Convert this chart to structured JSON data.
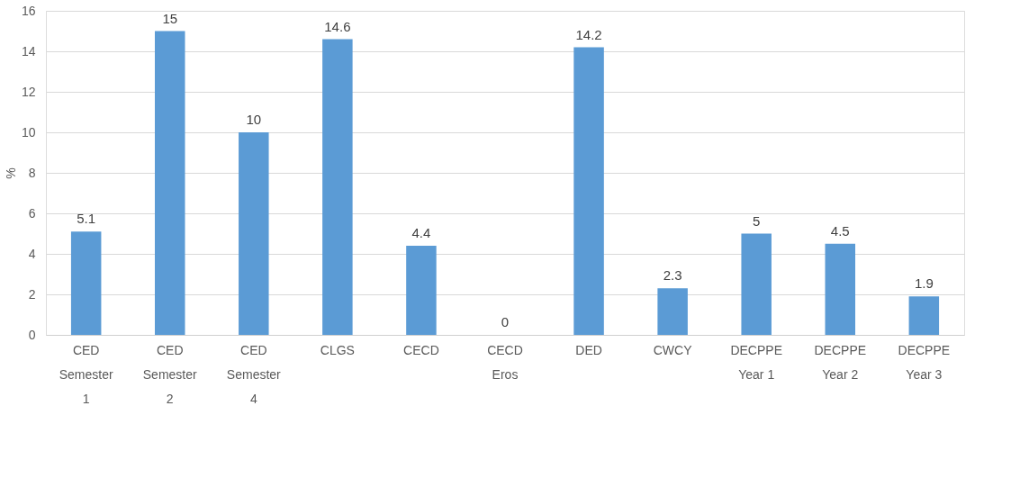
{
  "chart_data": {
    "type": "bar",
    "ylabel": "%",
    "categories": [
      "CED Semester 1",
      "CED Semester 2",
      "CED Semester 4",
      "CLGS",
      "CECD",
      "CECD Eros",
      "DED",
      "CWCY",
      "DECPPE Year 1",
      "DECPPE Year 2",
      "DECPPE Year 3"
    ],
    "values": [
      5.1,
      15,
      10,
      14.6,
      4.4,
      0,
      14.2,
      2.3,
      5,
      4.5,
      1.9
    ],
    "color": "#5b9bd5",
    "ylim": [
      0,
      16
    ],
    "yticks": [
      0,
      2,
      4,
      6,
      8,
      10,
      12,
      14,
      16
    ],
    "grid": "y",
    "data_labels": true
  }
}
